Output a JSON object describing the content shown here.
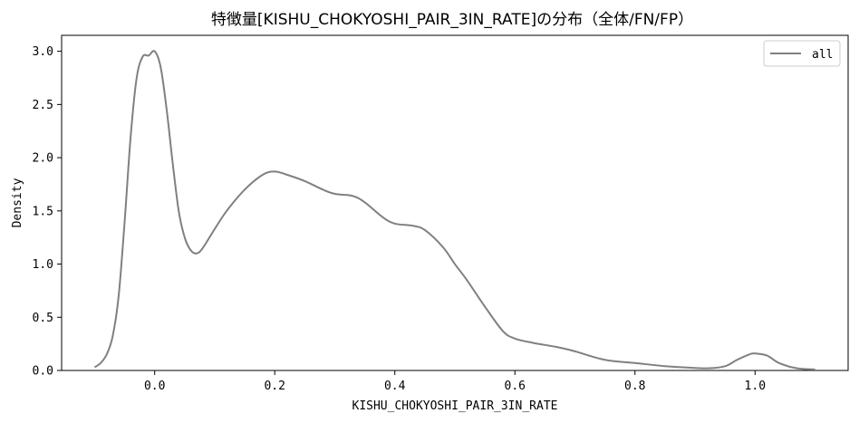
{
  "chart_data": {
    "type": "line",
    "title": "特徴量[KISHU_CHOKYOSHI_PAIR_3IN_RATE]の分布（全体/FN/FP）",
    "xlabel": "KISHU_CHOKYOSHI_PAIR_3IN_RATE",
    "ylabel": "Density",
    "xlim": [
      -0.155,
      1.155
    ],
    "ylim": [
      0,
      3.15
    ],
    "xticks": [
      0.0,
      0.2,
      0.4,
      0.6,
      0.8,
      1.0
    ],
    "xtick_labels": [
      "0.0",
      "0.2",
      "0.4",
      "0.6",
      "0.8",
      "1.0"
    ],
    "yticks": [
      0.0,
      0.5,
      1.0,
      1.5,
      2.0,
      2.5,
      3.0
    ],
    "ytick_labels": [
      "0.0",
      "0.5",
      "1.0",
      "1.5",
      "2.0",
      "2.5",
      "3.0"
    ],
    "grid": false,
    "legend_position": "top-right",
    "series": [
      {
        "name": "all",
        "color": "#808080",
        "x": [
          -0.1,
          -0.09,
          -0.08,
          -0.07,
          -0.06,
          -0.05,
          -0.04,
          -0.03,
          -0.02,
          -0.01,
          0.0,
          0.01,
          0.02,
          0.03,
          0.04,
          0.05,
          0.06,
          0.07,
          0.08,
          0.1,
          0.12,
          0.15,
          0.18,
          0.2,
          0.22,
          0.25,
          0.28,
          0.3,
          0.33,
          0.35,
          0.38,
          0.4,
          0.43,
          0.45,
          0.48,
          0.5,
          0.52,
          0.55,
          0.58,
          0.6,
          0.63,
          0.67,
          0.7,
          0.75,
          0.8,
          0.85,
          0.88,
          0.92,
          0.95,
          0.97,
          0.99,
          1.0,
          1.02,
          1.04,
          1.07,
          1.1
        ],
        "values": [
          0.03,
          0.07,
          0.15,
          0.32,
          0.7,
          1.4,
          2.2,
          2.75,
          2.95,
          2.96,
          3.0,
          2.85,
          2.45,
          1.95,
          1.5,
          1.25,
          1.13,
          1.1,
          1.15,
          1.33,
          1.5,
          1.7,
          1.84,
          1.87,
          1.84,
          1.78,
          1.7,
          1.66,
          1.64,
          1.58,
          1.44,
          1.38,
          1.36,
          1.32,
          1.16,
          1.0,
          0.85,
          0.6,
          0.37,
          0.3,
          0.26,
          0.22,
          0.18,
          0.1,
          0.07,
          0.04,
          0.03,
          0.02,
          0.04,
          0.1,
          0.15,
          0.16,
          0.14,
          0.07,
          0.02,
          0.01
        ]
      }
    ]
  }
}
